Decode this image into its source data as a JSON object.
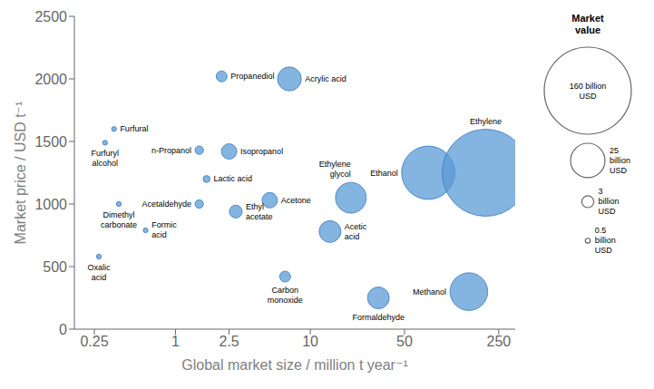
{
  "chart_data": {
    "type": "scatter",
    "x": [
      0.27,
      0.3,
      0.35,
      0.38,
      0.6,
      1.5,
      1.5,
      1.7,
      2.2,
      2.5,
      2.8,
      5.0,
      7.0,
      6.5,
      14.0,
      20.0,
      32.0,
      75.0,
      150.0,
      200.0
    ],
    "values": [
      580,
      1490,
      1600,
      1000,
      790,
      1430,
      1000,
      1200,
      2020,
      1420,
      940,
      1030,
      2000,
      420,
      780,
      1050,
      250,
      1250,
      300,
      1250
    ],
    "sizes": [
      0.5,
      0.5,
      0.5,
      0.5,
      0.5,
      1.5,
      1.5,
      1.0,
      2.5,
      5.0,
      3.5,
      5.0,
      12.0,
      2.5,
      10.0,
      20.0,
      10.0,
      60.0,
      30.0,
      160.0
    ],
    "labels": [
      "Oxalic\nacid",
      "Furfuryl\nalcohol",
      "Furfural",
      "Dimethyl\ncarbonate",
      "Formic\nacid",
      "n-Propanol",
      "Acetaldehyde",
      "Lactic acid",
      "Propanediol",
      "Isopropanol",
      "Ethyl\nacetate",
      "Acetone",
      "Acrylic acid",
      "Carbon\nmonoxide",
      "Acetic\nacid",
      "Ethylene\nglycol",
      "Formaldehyde",
      "Ethanol",
      "Methanol",
      "Ethylene"
    ],
    "color": "#5b9bd5",
    "xlabel": "Global market size / million t year⁻¹",
    "ylabel": "Market price / USD t⁻¹",
    "log": "x",
    "xlim": [
      0.17783,
      331.13
    ],
    "xticks": [
      0.25,
      1,
      2.5,
      10,
      50,
      250
    ],
    "ylim": [
      0,
      2500
    ],
    "yticks": [
      0,
      500,
      1000,
      1500,
      2000,
      2500
    ],
    "grid": false,
    "size_legend": {
      "title": "Market\nvalue",
      "values": [
        160,
        25,
        3,
        0.5
      ],
      "labels": [
        "160 billion\nUSD",
        "25\nbillion\nUSD",
        "3\nbillion\nUSD",
        "0.5\nbillion\nUSD"
      ]
    }
  }
}
